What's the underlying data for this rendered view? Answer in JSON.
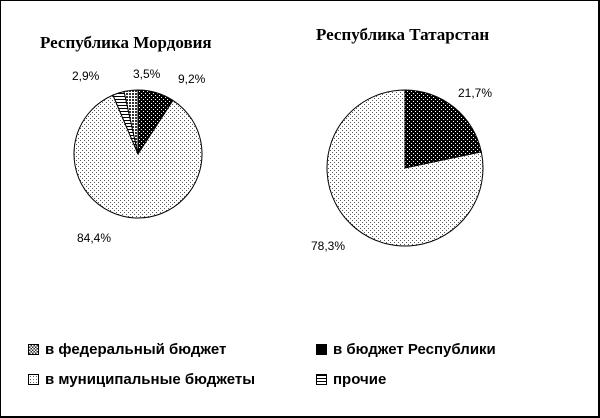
{
  "chart_data": [
    {
      "type": "pie",
      "title": "Республика Мордовия",
      "slices": [
        {
          "name": "в бюджет Республики",
          "value": 9.2,
          "label": "9,2%",
          "pattern": "dark"
        },
        {
          "name": "в муниципальные бюджеты",
          "value": 84.4,
          "label": "84,4%",
          "pattern": "dots"
        },
        {
          "name": "прочие",
          "value": 2.9,
          "label": "2,9%",
          "pattern": "hlines"
        },
        {
          "name": "в федеральный бюджет",
          "value": 3.5,
          "label": "3,5%",
          "pattern": "check"
        }
      ]
    },
    {
      "type": "pie",
      "title": "Республика Татарстан",
      "slices": [
        {
          "name": "в бюджет Республики",
          "value": 21.7,
          "label": "21,7%",
          "pattern": "dark"
        },
        {
          "name": "в муниципальные бюджеты",
          "value": 78.3,
          "label": "78,3%",
          "pattern": "dots"
        }
      ]
    }
  ],
  "legend": [
    {
      "label": "в федеральный бюджет",
      "pattern": "check"
    },
    {
      "label": "в бюджет Республики",
      "pattern": "dark"
    },
    {
      "label": "в муниципальные бюджеты",
      "pattern": "dots"
    },
    {
      "label": "прочие",
      "pattern": "hlines"
    }
  ]
}
